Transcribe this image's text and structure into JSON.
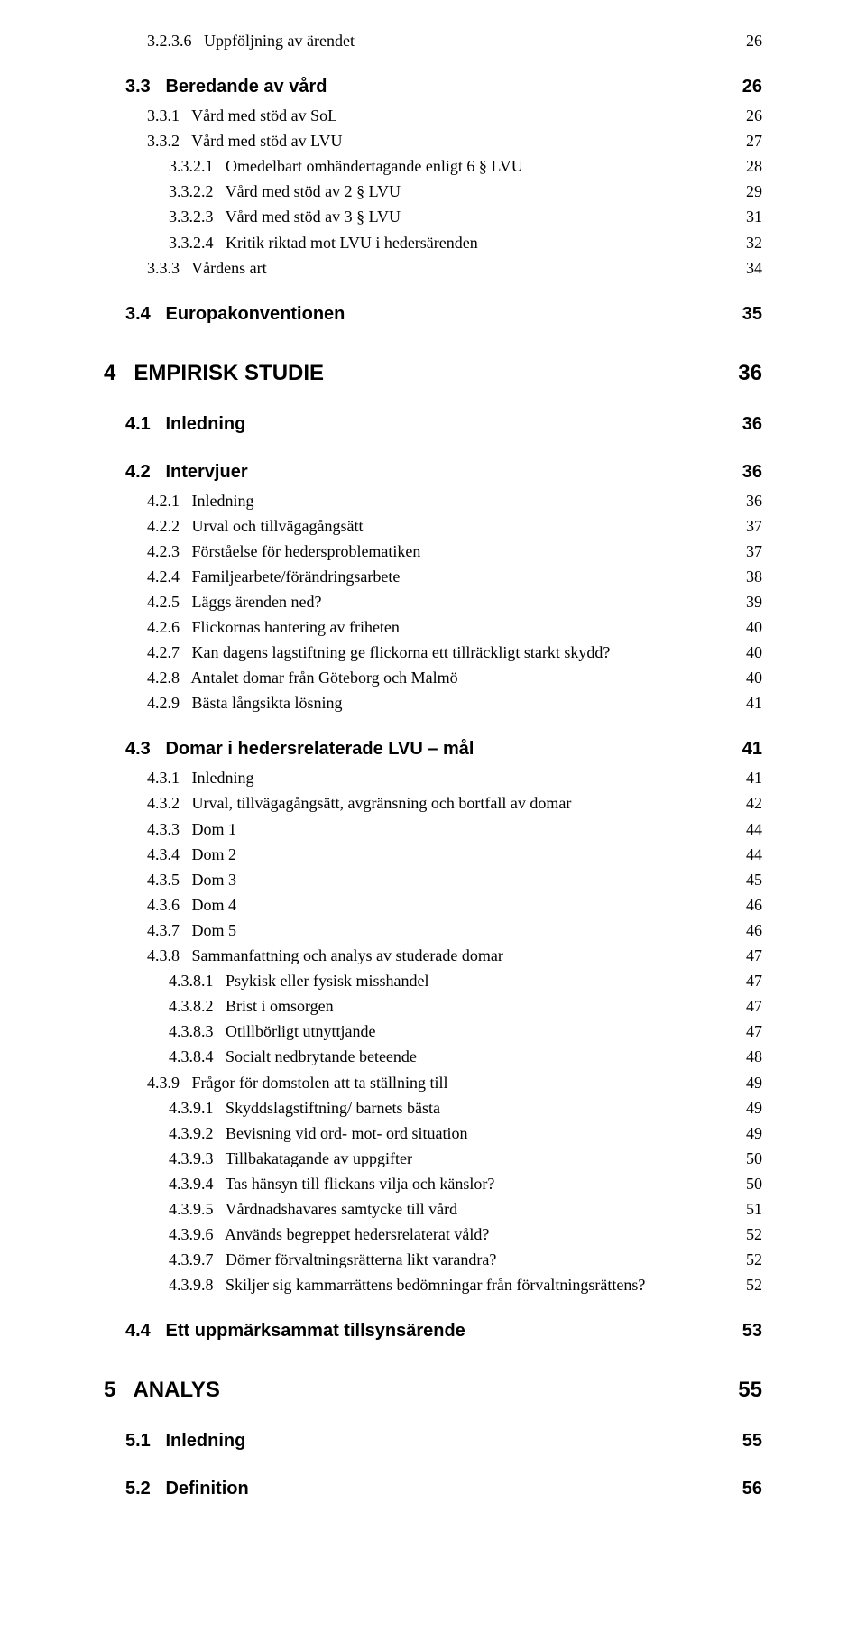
{
  "toc": [
    {
      "style": "lvl-h3",
      "font": "serif",
      "indent": 2,
      "num": "3.2.3.6",
      "title": "Uppföljning av ärendet",
      "page": "26"
    },
    {
      "style": "lvl-h2",
      "font": "sans",
      "indent": 1,
      "num": "3.3",
      "title": "Beredande av vård",
      "page": "26"
    },
    {
      "style": "lvl-h3",
      "font": "serif",
      "indent": 2,
      "num": "3.3.1",
      "title": "Vård med stöd av SoL",
      "page": "26"
    },
    {
      "style": "lvl-h3",
      "font": "serif",
      "indent": 2,
      "num": "3.3.2",
      "title": "Vård med stöd av LVU",
      "page": "27"
    },
    {
      "style": "lvl-h4",
      "font": "serif",
      "indent": 3,
      "num": "3.3.2.1",
      "title": "Omedelbart omhändertagande enligt 6 § LVU",
      "page": "28"
    },
    {
      "style": "lvl-h4",
      "font": "serif",
      "indent": 3,
      "num": "3.3.2.2",
      "title": "Vård med stöd av 2 § LVU",
      "page": "29"
    },
    {
      "style": "lvl-h4",
      "font": "serif",
      "indent": 3,
      "num": "3.3.2.3",
      "title": "Vård med stöd av 3 § LVU",
      "page": "31"
    },
    {
      "style": "lvl-h4",
      "font": "serif",
      "indent": 3,
      "num": "3.3.2.4",
      "title": "Kritik riktad mot LVU i hedersärenden",
      "page": "32"
    },
    {
      "style": "lvl-h3",
      "font": "serif",
      "indent": 2,
      "num": "3.3.3",
      "title": "Vårdens art",
      "page": "34"
    },
    {
      "style": "lvl-h2",
      "font": "sans",
      "indent": 1,
      "num": "3.4",
      "title": "Europakonventionen",
      "page": "35"
    },
    {
      "style": "lvl-h1",
      "font": "sans",
      "indent": 0,
      "num": "4",
      "title": "EMPIRISK STUDIE",
      "page": "36"
    },
    {
      "style": "lvl-h2",
      "font": "sans",
      "indent": 1,
      "num": "4.1",
      "title": "Inledning",
      "page": "36"
    },
    {
      "style": "lvl-h2",
      "font": "sans",
      "indent": 1,
      "num": "4.2",
      "title": "Intervjuer",
      "page": "36"
    },
    {
      "style": "lvl-h3",
      "font": "serif",
      "indent": 2,
      "num": "4.2.1",
      "title": "Inledning",
      "page": "36"
    },
    {
      "style": "lvl-h3",
      "font": "serif",
      "indent": 2,
      "num": "4.2.2",
      "title": "Urval och tillvägagångsätt",
      "page": "37"
    },
    {
      "style": "lvl-h3",
      "font": "serif",
      "indent": 2,
      "num": "4.2.3",
      "title": "Förståelse för hedersproblematiken",
      "page": "37"
    },
    {
      "style": "lvl-h3",
      "font": "serif",
      "indent": 2,
      "num": "4.2.4",
      "title": "Familjearbete/förändringsarbete",
      "page": "38"
    },
    {
      "style": "lvl-h3",
      "font": "serif",
      "indent": 2,
      "num": "4.2.5",
      "title": "Läggs ärenden ned?",
      "page": "39"
    },
    {
      "style": "lvl-h3",
      "font": "serif",
      "indent": 2,
      "num": "4.2.6",
      "title": "Flickornas hantering av friheten",
      "page": "40"
    },
    {
      "style": "lvl-h3",
      "font": "serif",
      "indent": 2,
      "num": "4.2.7",
      "title": "Kan dagens lagstiftning ge flickorna ett tillräckligt starkt skydd?",
      "page": "40"
    },
    {
      "style": "lvl-h3",
      "font": "serif",
      "indent": 2,
      "num": "4.2.8",
      "title": "Antalet domar från Göteborg och Malmö",
      "page": "40"
    },
    {
      "style": "lvl-h3",
      "font": "serif",
      "indent": 2,
      "num": "4.2.9",
      "title": "Bästa långsikta lösning",
      "page": "41"
    },
    {
      "style": "lvl-h2",
      "font": "sans",
      "indent": 1,
      "num": "4.3",
      "title": "Domar i hedersrelaterade LVU – mål",
      "page": "41"
    },
    {
      "style": "lvl-h3",
      "font": "serif",
      "indent": 2,
      "num": "4.3.1",
      "title": "Inledning",
      "page": "41"
    },
    {
      "style": "lvl-h3",
      "font": "serif",
      "indent": 2,
      "num": "4.3.2",
      "title": "Urval, tillvägagångsätt, avgränsning och bortfall av domar",
      "page": "42"
    },
    {
      "style": "lvl-h3",
      "font": "serif",
      "indent": 2,
      "num": "4.3.3",
      "title": "Dom 1",
      "page": "44"
    },
    {
      "style": "lvl-h3",
      "font": "serif",
      "indent": 2,
      "num": "4.3.4",
      "title": "Dom 2",
      "page": "44"
    },
    {
      "style": "lvl-h3",
      "font": "serif",
      "indent": 2,
      "num": "4.3.5",
      "title": "Dom 3",
      "page": "45"
    },
    {
      "style": "lvl-h3",
      "font": "serif",
      "indent": 2,
      "num": "4.3.6",
      "title": "Dom 4",
      "page": "46"
    },
    {
      "style": "lvl-h3",
      "font": "serif",
      "indent": 2,
      "num": "4.3.7",
      "title": "Dom 5",
      "page": "46"
    },
    {
      "style": "lvl-h3",
      "font": "serif",
      "indent": 2,
      "num": "4.3.8",
      "title": "Sammanfattning och analys av studerade domar",
      "page": "47"
    },
    {
      "style": "lvl-h4",
      "font": "serif",
      "indent": 3,
      "num": "4.3.8.1",
      "title": "Psykisk eller fysisk misshandel",
      "page": "47"
    },
    {
      "style": "lvl-h4",
      "font": "serif",
      "indent": 3,
      "num": "4.3.8.2",
      "title": "Brist i omsorgen",
      "page": "47"
    },
    {
      "style": "lvl-h4",
      "font": "serif",
      "indent": 3,
      "num": "4.3.8.3",
      "title": "Otillbörligt utnyttjande",
      "page": "47"
    },
    {
      "style": "lvl-h4",
      "font": "serif",
      "indent": 3,
      "num": "4.3.8.4",
      "title": "Socialt nedbrytande beteende",
      "page": "48"
    },
    {
      "style": "lvl-h3",
      "font": "serif",
      "indent": 2,
      "num": "4.3.9",
      "title": "Frågor för domstolen att ta ställning till",
      "page": "49"
    },
    {
      "style": "lvl-h4",
      "font": "serif",
      "indent": 3,
      "num": "4.3.9.1",
      "title": "Skyddslagstiftning/ barnets bästa",
      "page": "49"
    },
    {
      "style": "lvl-h4",
      "font": "serif",
      "indent": 3,
      "num": "4.3.9.2",
      "title": "Bevisning vid ord- mot- ord situation",
      "page": "49"
    },
    {
      "style": "lvl-h4",
      "font": "serif",
      "indent": 3,
      "num": "4.3.9.3",
      "title": "Tillbakatagande av uppgifter",
      "page": "50"
    },
    {
      "style": "lvl-h4",
      "font": "serif",
      "indent": 3,
      "num": "4.3.9.4",
      "title": "Tas hänsyn till flickans vilja och känslor?",
      "page": "50"
    },
    {
      "style": "lvl-h4",
      "font": "serif",
      "indent": 3,
      "num": "4.3.9.5",
      "title": "Vårdnadshavares samtycke till vård",
      "page": "51"
    },
    {
      "style": "lvl-h4",
      "font": "serif",
      "indent": 3,
      "num": "4.3.9.6",
      "title": "Används begreppet hedersrelaterat våld?",
      "page": "52"
    },
    {
      "style": "lvl-h4",
      "font": "serif",
      "indent": 3,
      "num": "4.3.9.7",
      "title": "Dömer förvaltningsrätterna likt varandra?",
      "page": "52"
    },
    {
      "style": "lvl-h4",
      "font": "serif",
      "indent": 3,
      "num": "4.3.9.8",
      "title": "Skiljer sig kammarrättens bedömningar från förvaltningsrättens?",
      "page": "52"
    },
    {
      "style": "lvl-h2",
      "font": "sans",
      "indent": 1,
      "num": "4.4",
      "title": "Ett uppmärksammat tillsynsärende",
      "page": "53"
    },
    {
      "style": "lvl-h1",
      "font": "sans",
      "indent": 0,
      "num": "5",
      "title": "ANALYS",
      "page": "55"
    },
    {
      "style": "lvl-h2",
      "font": "sans",
      "indent": 1,
      "num": "5.1",
      "title": "Inledning",
      "page": "55"
    },
    {
      "style": "lvl-h2",
      "font": "sans",
      "indent": 1,
      "num": "5.2",
      "title": "Definition",
      "page": "56"
    }
  ]
}
